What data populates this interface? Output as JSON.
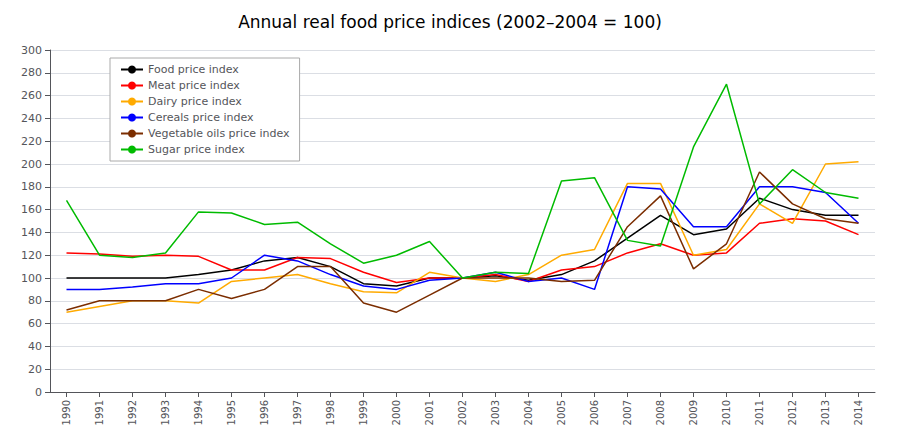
{
  "chart_data": {
    "type": "line",
    "title": "Annual real food price indices (2002–2004 = 100)",
    "x": [
      1990,
      1991,
      1992,
      1993,
      1994,
      1995,
      1996,
      1997,
      1998,
      1999,
      2000,
      2001,
      2002,
      2003,
      2004,
      2005,
      2006,
      2007,
      2008,
      2009,
      2010,
      2011,
      2012,
      2013,
      2014
    ],
    "series": [
      {
        "name": "Food price index",
        "color": "#000000",
        "values": [
          100,
          100,
          100,
          100,
          103,
          107,
          115,
          118,
          110,
          95,
          93,
          100,
          100,
          102,
          98,
          103,
          115,
          135,
          155,
          138,
          143,
          170,
          160,
          155,
          155
        ]
      },
      {
        "name": "Meat price index",
        "color": "#ff0000",
        "values": [
          122,
          121,
          119,
          120,
          119,
          107,
          107,
          118,
          117,
          105,
          96,
          100,
          100,
          103,
          97,
          107,
          110,
          122,
          130,
          120,
          122,
          148,
          152,
          150,
          138
        ]
      },
      {
        "name": "Dairy price index",
        "color": "#ffaa00",
        "values": [
          70,
          75,
          80,
          80,
          78,
          97,
          100,
          103,
          95,
          88,
          87,
          105,
          100,
          97,
          103,
          120,
          125,
          183,
          183,
          120,
          125,
          165,
          148,
          200,
          202
        ]
      },
      {
        "name": "Cereals price index",
        "color": "#0000ff",
        "values": [
          90,
          90,
          92,
          95,
          95,
          100,
          120,
          115,
          103,
          93,
          90,
          98,
          100,
          105,
          97,
          100,
          90,
          180,
          178,
          145,
          145,
          180,
          180,
          175,
          148
        ]
      },
      {
        "name": "Vegetable oils price index",
        "color": "#7b2d00",
        "values": [
          72,
          80,
          80,
          80,
          90,
          82,
          90,
          110,
          110,
          78,
          70,
          85,
          100,
          100,
          100,
          97,
          98,
          145,
          172,
          108,
          130,
          193,
          165,
          152,
          148
        ]
      },
      {
        "name": "Sugar price index",
        "color": "#00bb00",
        "values": [
          168,
          120,
          118,
          122,
          158,
          157,
          147,
          149,
          130,
          113,
          120,
          132,
          100,
          105,
          104,
          185,
          188,
          133,
          128,
          215,
          270,
          165,
          195,
          175,
          170
        ]
      }
    ],
    "xlim": [
      1989.5,
      2014.5
    ],
    "xticks": [
      1990,
      1991,
      1992,
      1993,
      1994,
      1995,
      1996,
      1997,
      1998,
      1999,
      2000,
      2001,
      2002,
      2003,
      2004,
      2005,
      2006,
      2007,
      2008,
      2009,
      2010,
      2011,
      2012,
      2013,
      2014
    ],
    "ylim": [
      0,
      300
    ],
    "yticks": [
      0,
      20,
      40,
      60,
      80,
      100,
      120,
      140,
      160,
      180,
      200,
      220,
      240,
      260,
      280,
      300
    ],
    "grid": true,
    "legend": "upper left"
  }
}
